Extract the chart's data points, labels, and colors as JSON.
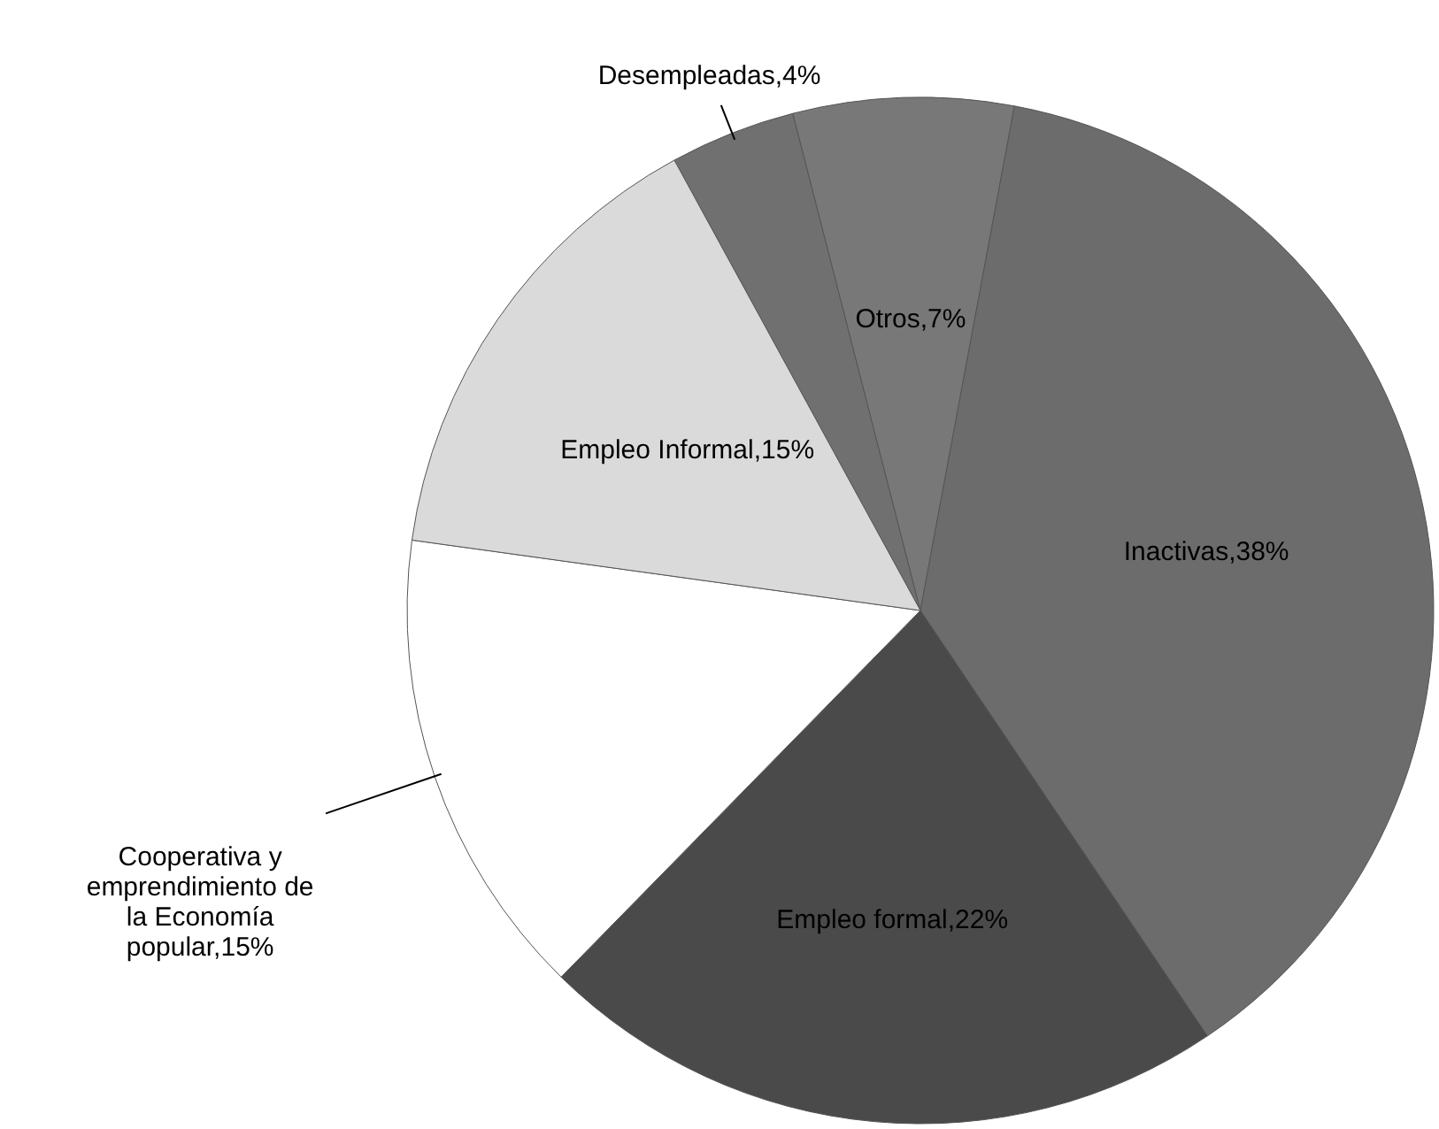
{
  "chart_data": {
    "type": "pie",
    "categories": [
      "Desempleadas",
      "Otros",
      "Inactivas",
      "Empleo formal",
      "Cooperativa y emprendimiento de la Economía popular",
      "Empleo Informal"
    ],
    "values": [
      4,
      7,
      38,
      22,
      15,
      15
    ],
    "colors": [
      "#707070",
      "#787878",
      "#6c6c6c",
      "#4a4a4a",
      "#ffffff",
      "#dadada"
    ],
    "value_labels": [
      "4%",
      "7%",
      "38%",
      "22%",
      "15%",
      "15%"
    ]
  }
}
